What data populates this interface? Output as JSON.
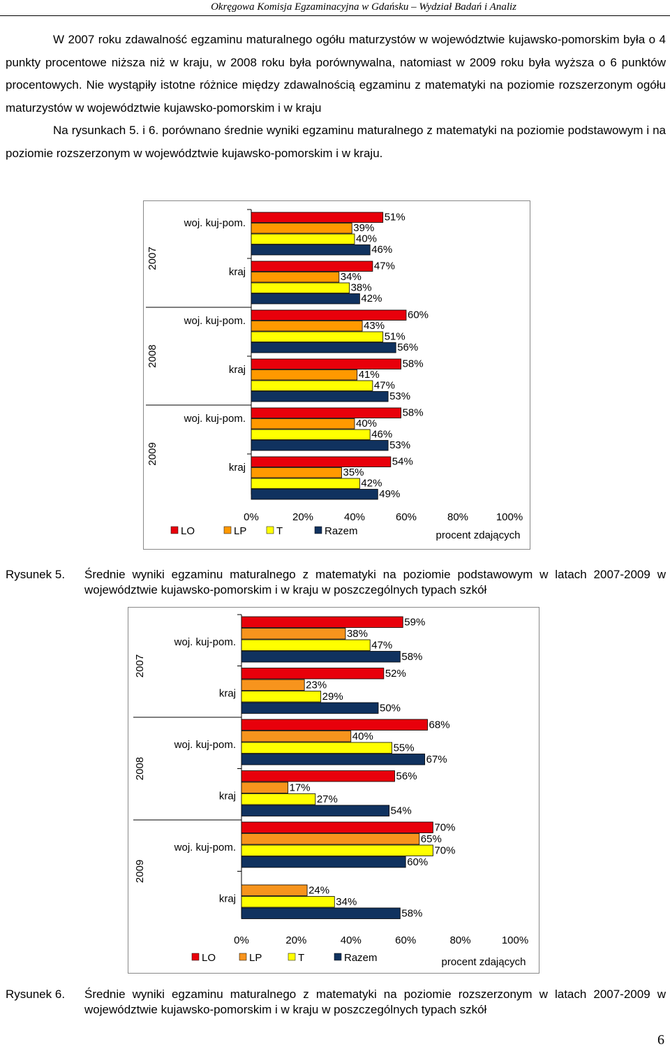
{
  "header": {
    "text": "Okręgowa Komisja Egzaminacyjna w Gdańsku – Wydział Badań i Analiz"
  },
  "intro": {
    "paragraph1": "W 2007 roku zdawalność egzaminu maturalnego ogółu maturzystów w województwie kujawsko-pomorskim była o 4 punkty procentowe niższa niż w kraju, w 2008 roku była porównywalna, natomiast w 2009 roku była wyższa o 6 punktów procentowych. Nie wystąpiły istotne różnice między zdawalnością egzaminu z matematyki na poziomie rozszerzonym ogółu maturzystów w województwie kujawsko-pomorskim i w kraju",
    "paragraph2": "Na rysunkach 5. i 6. porównano średnie wyniki egzaminu maturalnego z matematyki na poziomie podstawowym i na poziomie rozszerzonym w województwie kujawsko-pomorskim i w kraju."
  },
  "figure5": {
    "caption_number": "Rysunek 5.",
    "caption_text": "Średnie wyniki egzaminu maturalnego z matematyki na poziomie podstawowym w latach 2007-2009 w województwie kujawsko-pomorskim i w kraju w poszczególnych typach szkół"
  },
  "figure6": {
    "caption_number": "Rysunek 6.",
    "caption_text": "Średnie wyniki egzaminu maturalnego z matematyki na poziomie rozszerzonym w latach 2007-2009 w województwie kujawsko-pomorskim i w kraju w poszczególnych typach szkół"
  },
  "page_number": "6",
  "colors": {
    "LO": "#e8000b",
    "LP": "#f7941d",
    "T": "#ffff00",
    "Razem": "#10325f"
  },
  "chart_data": [
    {
      "type": "bar",
      "orientation": "horizontal",
      "title": "",
      "xlabel": "procent zdających",
      "xlim": [
        0,
        100
      ],
      "ticks": [
        "0%",
        "20%",
        "40%",
        "60%",
        "80%",
        "100%"
      ],
      "groups": [
        "2007",
        "2008",
        "2009"
      ],
      "categories": [
        "woj. kuj-pom.",
        "kraj"
      ],
      "legend": [
        "LO",
        "LP",
        "T",
        "Razem"
      ],
      "series_colors": [
        "#e8000b",
        "#ff9900",
        "#ffff00",
        "#10325f"
      ],
      "values": {
        "2007": {
          "woj. kuj-pom.": [
            51,
            39,
            40,
            46
          ],
          "kraj": [
            47,
            34,
            38,
            42
          ]
        },
        "2008": {
          "woj. kuj-pom.": [
            60,
            43,
            51,
            56
          ],
          "kraj": [
            58,
            41,
            47,
            53
          ]
        },
        "2009": {
          "woj. kuj-pom.": [
            58,
            40,
            46,
            53
          ],
          "kraj": [
            54,
            35,
            42,
            49
          ]
        }
      }
    },
    {
      "type": "bar",
      "orientation": "horizontal",
      "title": "",
      "xlabel": "procent zdających",
      "xlim": [
        0,
        100
      ],
      "ticks": [
        "0%",
        "20%",
        "40%",
        "60%",
        "80%",
        "100%"
      ],
      "groups": [
        "2007",
        "2008",
        "2009"
      ],
      "categories": [
        "woj. kuj-pom.",
        "kraj"
      ],
      "legend": [
        "LO",
        "LP",
        "T",
        "Razem"
      ],
      "series_colors": [
        "#e8000b",
        "#f7941d",
        "#ffff00",
        "#10325f"
      ],
      "values": {
        "2007": {
          "woj. kuj-pom.": [
            59,
            38,
            47,
            58
          ],
          "kraj": [
            52,
            23,
            29,
            50
          ]
        },
        "2008": {
          "woj. kuj-pom.": [
            68,
            40,
            55,
            67
          ],
          "kraj": [
            56,
            17,
            27,
            54
          ]
        },
        "2009": {
          "woj. kuj-pom.": [
            70,
            65,
            70,
            60
          ],
          "kraj": [
            null,
            24,
            34,
            58
          ]
        }
      }
    }
  ]
}
